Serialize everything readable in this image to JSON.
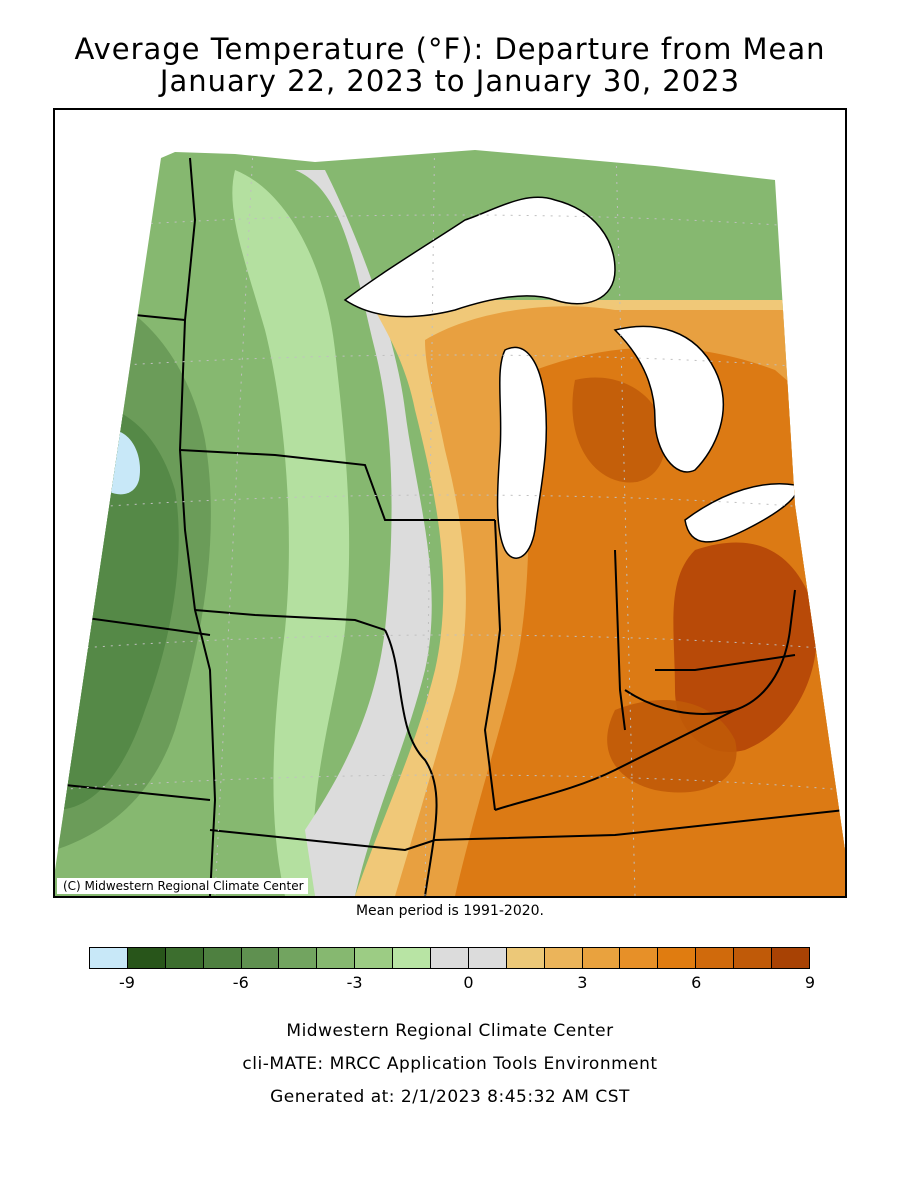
{
  "title": {
    "line1": "Average Temperature (°F): Departure from Mean",
    "line2": "January 22, 2023 to January 30, 2023"
  },
  "map": {
    "copyright": "(C) Midwestern Regional Climate Center",
    "region": "Midwest United States",
    "colors": {
      "land_green_dark": "#3c7a32",
      "land_green_mid": "#78ab62",
      "land_green_light": "#b4e0a0",
      "neutral_gray": "#dcdcdc",
      "orange_light": "#f0c878",
      "orange_mid": "#e8a040",
      "orange_deep": "#dc7a14",
      "orange_darkest": "#b84a08",
      "water": "#ffffff",
      "ice_blue": "#c8e8f8"
    }
  },
  "mean_period": "Mean period is 1991-2020.",
  "legend": {
    "colors": [
      "#c8e8f8",
      "#28551a",
      "#3c6e2e",
      "#4e8040",
      "#5f9050",
      "#72a460",
      "#86b870",
      "#9ccc84",
      "#b8e4a4",
      "#dcdcdc",
      "#dcdcdc",
      "#ecc878",
      "#ebb45a",
      "#e9a23e",
      "#e79028",
      "#e07c10",
      "#d06a0c",
      "#c05a08",
      "#a84204"
    ],
    "ticks": [
      "-9",
      "-6",
      "-3",
      "0",
      "3",
      "6",
      "9"
    ]
  },
  "footer": {
    "line1": "Midwestern Regional Climate Center",
    "line2": "cli-MATE: MRCC Application Tools Environment",
    "line3": "Generated at: 2/1/2023 8:45:32 AM CST"
  }
}
